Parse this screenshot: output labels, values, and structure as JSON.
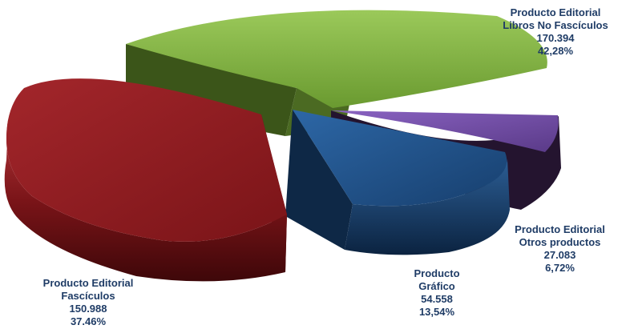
{
  "chart_data": {
    "type": "pie",
    "style": "3d-exploded",
    "slices": [
      {
        "label_lines": [
          "Producto Editorial",
          "Libros No Fascículos"
        ],
        "value": "170.394",
        "percent": "42,28%",
        "value_num": 170394,
        "percent_num": 42.28,
        "color": "#7cad3c",
        "side_color": "#3f5a1a"
      },
      {
        "label_lines": [
          "Producto Editorial",
          "Otros productos"
        ],
        "value": "27.083",
        "percent": "6,72%",
        "value_num": 27083,
        "percent_num": 6.72,
        "color": "#6e4aa0",
        "side_color": "#2a1a40"
      },
      {
        "label_lines": [
          "Producto",
          "Gráfico"
        ],
        "value": "54.558",
        "percent": "13,54%",
        "value_num": 54558,
        "percent_num": 13.54,
        "color": "#1f4f84",
        "side_color": "#0f2d50"
      },
      {
        "label_lines": [
          "Producto Editorial",
          "Fascículos"
        ],
        "value": "150.988",
        "percent": "37.46%",
        "value_num": 150988,
        "percent_num": 37.46,
        "color": "#8a1e22",
        "side_color": "#5a0e12"
      }
    ]
  }
}
